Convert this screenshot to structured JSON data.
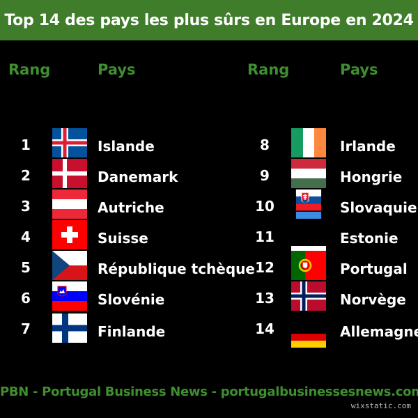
{
  "title": "Top 14 des pays les plus sûrs en Europe en 2024",
  "headers": {
    "rank": "Rang",
    "country": "Pays"
  },
  "left": [
    {
      "rank": "1",
      "country": "Islande",
      "flag": "iceland-flag-icon"
    },
    {
      "rank": "2",
      "country": "Danemark",
      "flag": "denmark-flag-icon"
    },
    {
      "rank": "3",
      "country": "Autriche",
      "flag": "austria-flag-icon"
    },
    {
      "rank": "4",
      "country": "Suisse",
      "flag": "switzerland-flag-icon"
    },
    {
      "rank": "5",
      "country": "République tchèque",
      "flag": "czech-republic-flag-icon"
    },
    {
      "rank": "6",
      "country": "Slovénie",
      "flag": "slovenia-flag-icon"
    },
    {
      "rank": "7",
      "country": "Finlande",
      "flag": "finland-flag-icon"
    }
  ],
  "right": [
    {
      "rank": "8",
      "country": "Irlande",
      "flag": "ireland-flag-icon"
    },
    {
      "rank": "9",
      "country": "Hongrie",
      "flag": "hungary-flag-icon"
    },
    {
      "rank": "10",
      "country": "Slovaquie",
      "flag": "slovakia-flag-icon"
    },
    {
      "rank": "11",
      "country": "Estonie",
      "flag": "estonia-flag-icon"
    },
    {
      "rank": "12",
      "country": "Portugal",
      "flag": "portugal-flag-icon"
    },
    {
      "rank": "13",
      "country": "Norvège",
      "flag": "norway-flag-icon"
    },
    {
      "rank": "14",
      "country": "Allemagne",
      "flag": "germany-flag-icon"
    }
  ],
  "footer": "PBN - Portugal Business News - portugalbusinessesnews.com",
  "watermark": "wixstatic.com",
  "colors": {
    "accent": "#3f7d2a",
    "accent_text": "#3f8f2f",
    "background": "#000000"
  }
}
